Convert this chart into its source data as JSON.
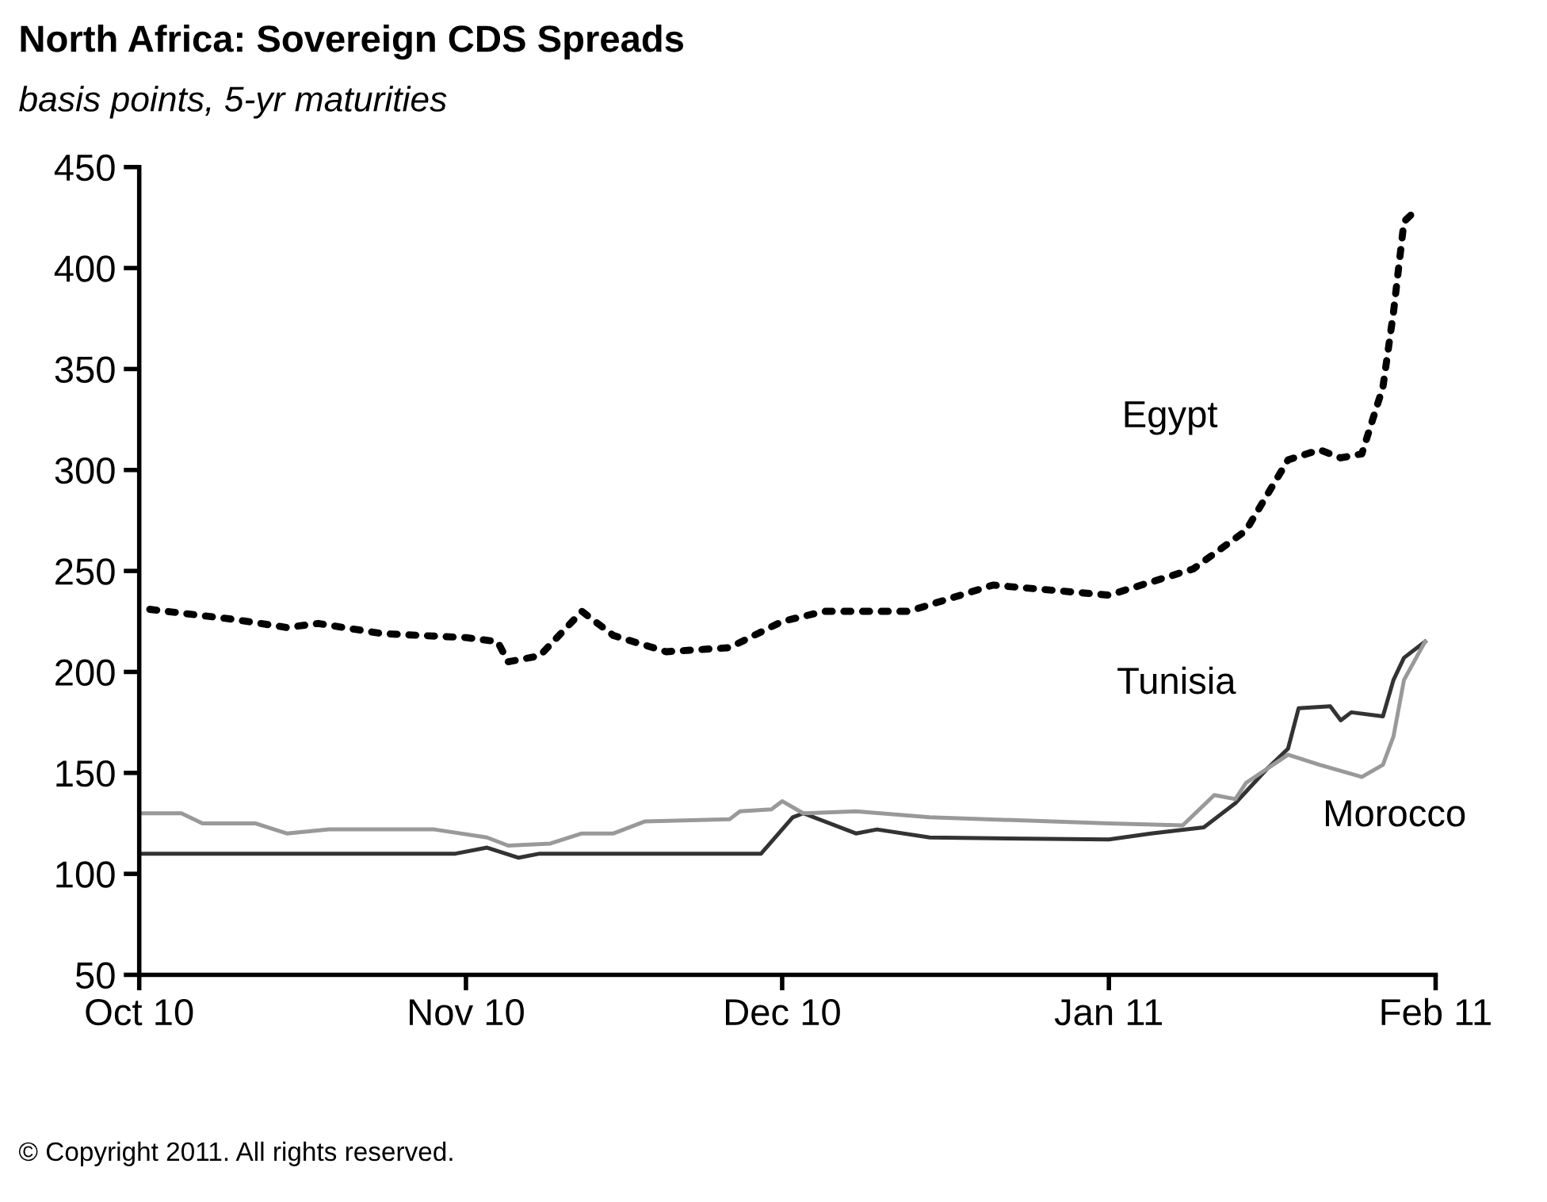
{
  "chart_data": {
    "type": "line",
    "title": "North Africa: Sovereign CDS Spreads",
    "subtitle": "basis points, 5-yr maturities",
    "annotations": [
      "© Copyright 2011. All rights reserved."
    ],
    "xlim": [
      "2010-10-01",
      "2011-02-01"
    ],
    "xticks": [
      {
        "value": "2010-10-01",
        "label": "Oct 10"
      },
      {
        "value": "2010-11-01",
        "label": "Nov 10"
      },
      {
        "value": "2010-12-01",
        "label": "Dec 10"
      },
      {
        "value": "2011-01-01",
        "label": "Jan 11"
      },
      {
        "value": "2011-02-01",
        "label": "Feb 11"
      }
    ],
    "ylim": [
      50,
      450
    ],
    "yticks": [
      50,
      100,
      150,
      200,
      250,
      300,
      350,
      400,
      450
    ],
    "grid": false,
    "legend": false,
    "series": [
      {
        "name": "Egypt",
        "color": "#000000",
        "line_style": "dotted",
        "x": [
          "2010-10-02",
          "2010-10-10",
          "2010-10-15",
          "2010-10-18",
          "2010-10-24",
          "2010-11-01",
          "2010-11-04",
          "2010-11-05",
          "2010-11-08",
          "2010-11-12",
          "2010-11-15",
          "2010-11-20",
          "2010-11-26",
          "2010-12-01",
          "2010-12-05",
          "2010-12-13",
          "2010-12-21",
          "2011-01-01",
          "2011-01-09",
          "2011-01-14",
          "2011-01-18",
          "2011-01-21",
          "2011-01-23",
          "2011-01-25",
          "2011-01-27",
          "2011-01-28",
          "2011-01-29",
          "2011-01-30"
        ],
        "values": [
          231,
          226,
          222,
          224,
          219,
          217,
          215,
          205,
          208,
          230,
          218,
          210,
          212,
          225,
          230,
          230,
          243,
          238,
          251,
          270,
          305,
          310,
          306,
          308,
          341,
          378,
          423,
          428
        ]
      },
      {
        "name": "Tunisia",
        "color": "#333333",
        "line_style": "solid",
        "x": [
          "2010-10-01",
          "2010-10-31",
          "2010-11-03",
          "2010-11-06",
          "2010-11-08",
          "2010-11-29",
          "2010-12-02",
          "2010-12-03",
          "2010-12-08",
          "2010-12-10",
          "2010-12-15",
          "2011-01-01",
          "2011-01-05",
          "2011-01-10",
          "2011-01-13",
          "2011-01-16",
          "2011-01-18",
          "2011-01-19",
          "2011-01-22",
          "2011-01-23",
          "2011-01-24",
          "2011-01-27",
          "2011-01-28",
          "2011-01-29",
          "2011-01-31"
        ],
        "values": [
          110,
          110,
          113,
          108,
          110,
          110,
          128,
          130,
          120,
          122,
          118,
          117,
          120,
          123,
          135,
          152,
          162,
          182,
          183,
          176,
          180,
          178,
          196,
          207,
          215
        ]
      },
      {
        "name": "Morocco",
        "color": "#999999",
        "line_style": "solid",
        "x": [
          "2010-10-01",
          "2010-10-05",
          "2010-10-07",
          "2010-10-12",
          "2010-10-15",
          "2010-10-19",
          "2010-10-29",
          "2010-11-03",
          "2010-11-05",
          "2010-11-09",
          "2010-11-12",
          "2010-11-15",
          "2010-11-18",
          "2010-11-26",
          "2010-11-27",
          "2010-11-30",
          "2010-12-01",
          "2010-12-03",
          "2010-12-08",
          "2010-12-15",
          "2011-01-01",
          "2011-01-08",
          "2011-01-11",
          "2011-01-13",
          "2011-01-14",
          "2011-01-18",
          "2011-01-21",
          "2011-01-25",
          "2011-01-27",
          "2011-01-28",
          "2011-01-29",
          "2011-01-31"
        ],
        "values": [
          130,
          130,
          125,
          125,
          120,
          122,
          122,
          118,
          114,
          115,
          120,
          120,
          126,
          127,
          131,
          132,
          136,
          130,
          131,
          128,
          125,
          124,
          139,
          137,
          145,
          159,
          154,
          148,
          154,
          168,
          196,
          215
        ]
      }
    ]
  }
}
